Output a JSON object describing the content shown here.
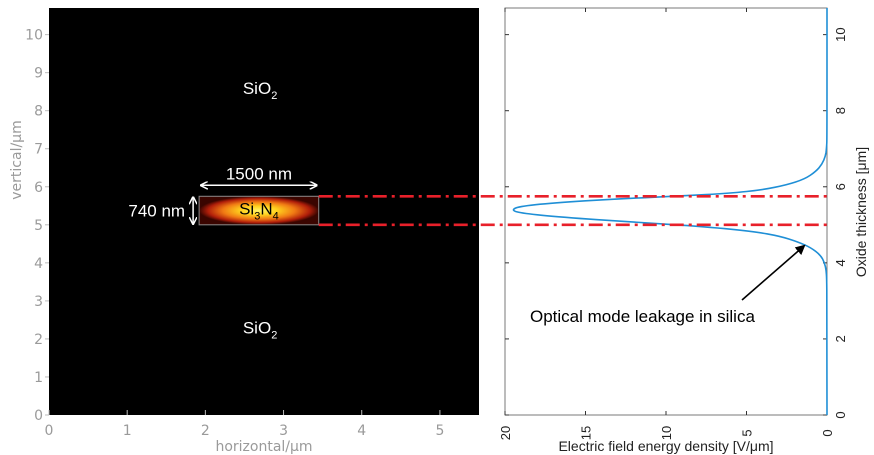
{
  "chart_data": [
    {
      "type": "heatmap",
      "title": "",
      "xlabel": "horizontal/μm",
      "ylabel": "vertical/μm",
      "xlim": [
        0,
        5.5
      ],
      "ylim": [
        0,
        10.7
      ],
      "xticks": [
        0,
        1,
        2,
        3,
        4,
        5
      ],
      "yticks": [
        0,
        1,
        2,
        3,
        4,
        5,
        6,
        7,
        8,
        9,
        10
      ],
      "grid": false,
      "core": {
        "x": [
          1.92,
          3.45
        ],
        "y": [
          5.0,
          5.75
        ]
      },
      "annotations": {
        "top_material": "SiO",
        "top_material_sub": "2",
        "bottom_material": "SiO",
        "bottom_material_sub": "2",
        "core_si": "Si",
        "core_si_sub": "3",
        "core_n": "N",
        "core_n_sub": "4",
        "width_label": "1500 nm",
        "height_label": "740 nm"
      }
    },
    {
      "type": "line",
      "title": "",
      "xlabel": "Electric field energy density [V/μm]",
      "ylabel": "Oxide thickness [μm]",
      "xlim": [
        20,
        0
      ],
      "ylim": [
        0,
        10.7
      ],
      "xticks": [
        20,
        15,
        10,
        5,
        0
      ],
      "yticks": [
        0,
        2,
        4,
        6,
        8,
        10
      ],
      "grid": false,
      "series": [
        {
          "color": "#1f8fd6",
          "points": [
            [
              0.0,
              0.0
            ],
            [
              0.0,
              3.0
            ],
            [
              0.02,
              3.6
            ],
            [
              0.05,
              3.8
            ],
            [
              0.15,
              4.0
            ],
            [
              0.4,
              4.2
            ],
            [
              1.0,
              4.4
            ],
            [
              1.8,
              4.55
            ],
            [
              2.9,
              4.7
            ],
            [
              4.5,
              4.82
            ],
            [
              7.5,
              4.95
            ],
            [
              12.0,
              5.07
            ],
            [
              16.5,
              5.2
            ],
            [
              18.9,
              5.3
            ],
            [
              19.6,
              5.38
            ],
            [
              19.2,
              5.48
            ],
            [
              17.0,
              5.58
            ],
            [
              13.0,
              5.68
            ],
            [
              9.0,
              5.76
            ],
            [
              6.0,
              5.83
            ],
            [
              4.0,
              5.92
            ],
            [
              2.5,
              6.05
            ],
            [
              1.4,
              6.2
            ],
            [
              0.7,
              6.4
            ],
            [
              0.3,
              6.6
            ],
            [
              0.1,
              6.8
            ],
            [
              0.03,
              7.0
            ],
            [
              0.0,
              7.3
            ],
            [
              0.0,
              10.7
            ]
          ]
        }
      ]
    }
  ],
  "overlay": {
    "dashed_lines_y": [
      5.75,
      5.0
    ],
    "dashed_color": "#e8202a",
    "annotation_text": "Optical mode leakage in silica"
  }
}
